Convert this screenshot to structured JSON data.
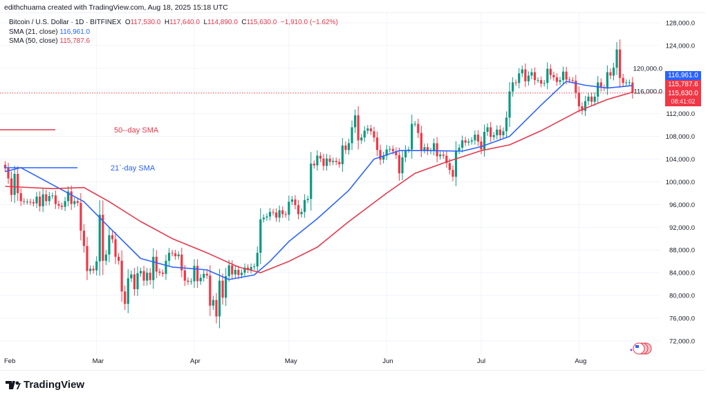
{
  "credit": "edithchuama created with TradingView.com, Aug 18, 2025 15:18 UTC",
  "legend": {
    "symbol": "Bitcoin / U.S. Dollar · 1D · BITFINEX",
    "o_label": "O",
    "o": "117,530.0",
    "h_label": "H",
    "h": "117,640.0",
    "l_label": "L",
    "l": "114,890.0",
    "c_label": "C",
    "c": "115,630.0",
    "change": "−1,910.0 (−1.62%)",
    "sma21_label": "SMA (21, close)",
    "sma21": "116,961.0",
    "sma50_label": "SMA (50, close)",
    "sma50": "115,787.6"
  },
  "price_boxes": {
    "sma21": "116,961.0",
    "sma50": "115,787.6",
    "last": "115,630.0",
    "countdown": "08:41:02"
  },
  "annotations": {
    "sma50": "50--day SMA",
    "sma21": "21`-day SMA"
  },
  "footer": {
    "brand": "TradingView"
  },
  "colors": {
    "up": "#089981",
    "down": "#f23645",
    "sma21": "#2962ff",
    "sma50": "#e5374a",
    "grid": "#f0f3fa"
  },
  "chart_data": {
    "type": "candlestick",
    "title": "Bitcoin / U.S. Dollar · 1D · BITFINEX",
    "ylim": [
      70000,
      130000
    ],
    "yticks": [
      "72,000.0",
      "76,000.0",
      "80,000.0",
      "84,000.0",
      "88,000.0",
      "92,000.0",
      "96,000.0",
      "100,000.0",
      "104,000.0",
      "108,000.0",
      "112,000.0",
      "116,000.0",
      "120,000.0",
      "124,000.0",
      "128,000.0"
    ],
    "xticks": [
      "Feb",
      "Mar",
      "Apr",
      "May",
      "Jun",
      "Jul",
      "Aug"
    ],
    "grid": true,
    "start_date": "2025-01-31",
    "first_open": 103000,
    "closes": [
      102400,
      100600,
      97700,
      101400,
      98000,
      96600,
      96500,
      96500,
      96400,
      96200,
      97400,
      95700,
      97800,
      96600,
      97500,
      97600,
      96100,
      95800,
      95600,
      96600,
      98300,
      96100,
      96600,
      96300,
      91400,
      88700,
      84300,
      84700,
      84400,
      86000,
      94200,
      86100,
      87200,
      90600,
      89900,
      86800,
      86100,
      80700,
      78500,
      83000,
      83700,
      81100,
      83900,
      84300,
      82600,
      84000,
      82700,
      86800,
      84200,
      84000,
      83800,
      86100,
      87500,
      87400,
      86900,
      87200,
      84400,
      82600,
      82400,
      82500,
      85200,
      82500,
      83100,
      83800,
      83500,
      78200,
      79200,
      76300,
      82600,
      79600,
      83400,
      85300,
      83700,
      84500,
      83600,
      84000,
      84900,
      84500,
      85000,
      85100,
      87500,
      93400,
      93700,
      93900,
      94700,
      94600,
      93700,
      95000,
      94300,
      94200,
      96500,
      96900,
      95900,
      94300,
      94700,
      96800,
      97000,
      103200,
      102900,
      104600,
      104100,
      102800,
      104100,
      103500,
      103700,
      103500,
      103100,
      106400,
      105600,
      106800,
      109600,
      111700,
      107300,
      107800,
      109000,
      109400,
      108900,
      107800,
      105600,
      103900,
      104600,
      105700,
      105800,
      105400,
      104700,
      101500,
      104300,
      105600,
      105700,
      110200,
      110200,
      108600,
      105600,
      106100,
      105400,
      105500,
      106800,
      104500,
      104800,
      104600,
      103300,
      102100,
      100900,
      105500,
      106000,
      107300,
      106900,
      107100,
      107300,
      108300,
      107100,
      105700,
      108800,
      109600,
      107900,
      108200,
      109200,
      108200,
      108900,
      111300,
      115900,
      117500,
      117400,
      119100,
      119800,
      117700,
      118700,
      119300,
      117900,
      117900,
      117300,
      117400,
      119900,
      118800,
      118400,
      117600,
      117900,
      119400,
      118000,
      117900,
      117800,
      115700,
      113300,
      112500,
      114200,
      115000,
      114100,
      115000,
      117500,
      116600,
      116500,
      119300,
      118700,
      120100,
      123300,
      118300,
      117400,
      117500,
      117500,
      115630
    ],
    "series": [
      {
        "name": "SMA (21, close)",
        "points": [
          [
            "2025-01-31",
            101800
          ],
          [
            "2025-02-05",
            102500
          ],
          [
            "2025-02-15",
            99500
          ],
          [
            "2025-02-25",
            96500
          ],
          [
            "2025-03-05",
            92000
          ],
          [
            "2025-03-15",
            86500
          ],
          [
            "2025-03-25",
            85000
          ],
          [
            "2025-04-05",
            84500
          ],
          [
            "2025-04-12",
            82800
          ],
          [
            "2025-04-20",
            83600
          ],
          [
            "2025-04-25",
            86000
          ],
          [
            "2025-05-01",
            89500
          ],
          [
            "2025-05-10",
            93500
          ],
          [
            "2025-05-20",
            98500
          ],
          [
            "2025-05-28",
            104000
          ],
          [
            "2025-06-05",
            105500
          ],
          [
            "2025-06-15",
            105500
          ],
          [
            "2025-06-25",
            105400
          ],
          [
            "2025-07-01",
            106200
          ],
          [
            "2025-07-10",
            108000
          ],
          [
            "2025-07-20",
            113500
          ],
          [
            "2025-07-28",
            117700
          ],
          [
            "2025-08-03",
            117000
          ],
          [
            "2025-08-10",
            116500
          ],
          [
            "2025-08-18",
            116961
          ]
        ]
      },
      {
        "name": "SMA (50, close)",
        "points": [
          [
            "2025-01-31",
            99200
          ],
          [
            "2025-02-15",
            98800
          ],
          [
            "2025-02-25",
            99000
          ],
          [
            "2025-03-05",
            96500
          ],
          [
            "2025-03-15",
            93000
          ],
          [
            "2025-03-25",
            90000
          ],
          [
            "2025-04-05",
            87500
          ],
          [
            "2025-04-15",
            85000
          ],
          [
            "2025-04-22",
            84000
          ],
          [
            "2025-05-01",
            86000
          ],
          [
            "2025-05-10",
            88500
          ],
          [
            "2025-05-20",
            93000
          ],
          [
            "2025-06-01",
            98000
          ],
          [
            "2025-06-10",
            101500
          ],
          [
            "2025-06-20",
            103500
          ],
          [
            "2025-07-01",
            105500
          ],
          [
            "2025-07-10",
            106500
          ],
          [
            "2025-07-20",
            109000
          ],
          [
            "2025-08-01",
            112500
          ],
          [
            "2025-08-10",
            114500
          ],
          [
            "2025-08-18",
            115787.6
          ]
        ]
      }
    ]
  }
}
